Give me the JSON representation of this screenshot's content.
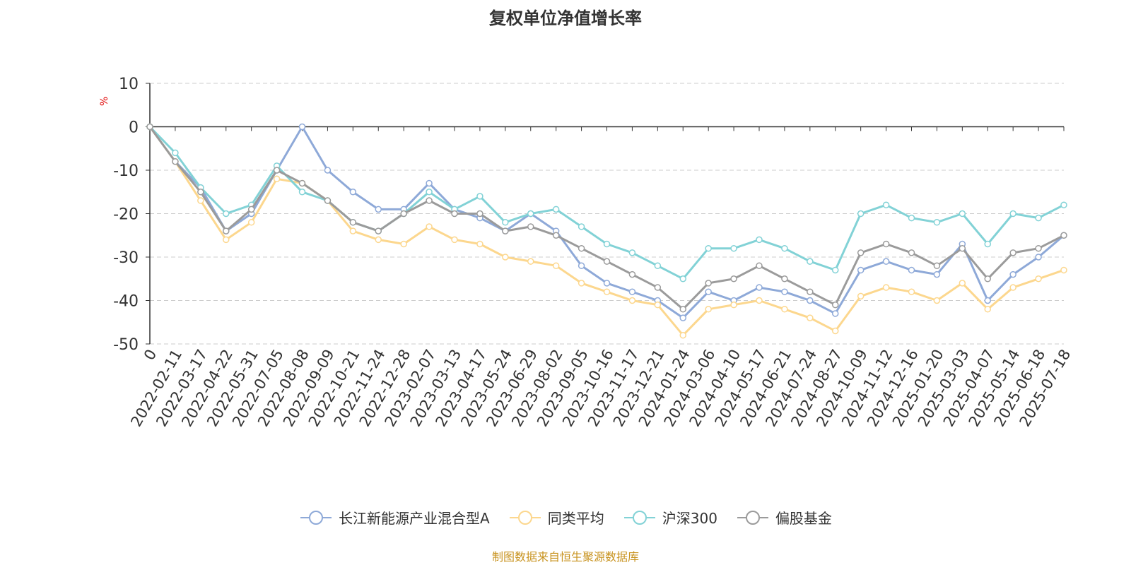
{
  "title": "复权单位净值增长率",
  "unit_label": "%",
  "source_note": "制图数据来自恒生聚源数据库",
  "colors": {
    "fund": "#8ea9d8",
    "category_avg": "#fcd78e",
    "hs300": "#82d2d6",
    "stock_fund": "#9b9b9b",
    "axis": "#333333",
    "grid": "#cccccc"
  },
  "chart_data": {
    "type": "line",
    "title": "复权单位净值增长率",
    "ylabel": "%",
    "ylim": [
      -50,
      10
    ],
    "yticks": [
      10,
      0,
      -10,
      -20,
      -30,
      -40,
      -50
    ],
    "x_ticks": [
      "0",
      "2022-02-11",
      "2022-03-17",
      "2022-04-22",
      "2022-05-31",
      "2022-07-05",
      "2022-08-08",
      "2022-09-09",
      "2022-10-21",
      "2022-11-24",
      "2022-12-28",
      "2023-02-07",
      "2023-03-13",
      "2023-04-17",
      "2023-05-24",
      "2023-06-29",
      "2023-08-02",
      "2023-09-05",
      "2023-10-16",
      "2023-11-17",
      "2023-12-21",
      "2024-01-24",
      "2024-03-06",
      "2024-04-10",
      "2024-05-17",
      "2024-06-21",
      "2024-07-24",
      "2024-08-27",
      "2024-10-09",
      "2024-11-12",
      "2024-12-16",
      "2025-01-20",
      "2025-03-03",
      "2025-04-07",
      "2025-05-14",
      "2025-06-18",
      "2025-07-18"
    ],
    "grid": true,
    "legend_position": "bottom",
    "series": [
      {
        "name": "长江新能源产业混合型A",
        "color": "#8ea9d8",
        "values": [
          0,
          -8,
          -14,
          -24,
          -20,
          -10,
          0,
          -10,
          -15,
          -19,
          -19,
          -13,
          -19,
          -21,
          -24,
          -20,
          -24,
          -32,
          -36,
          -38,
          -40,
          -44,
          -38,
          -40,
          -37,
          -38,
          -40,
          -43,
          -33,
          -31,
          -33,
          -34,
          -27,
          -40,
          -34,
          -30,
          -25
        ]
      },
      {
        "name": "同类平均",
        "color": "#fcd78e",
        "values": [
          0,
          -8,
          -17,
          -26,
          -22,
          -12,
          -13,
          -17,
          -24,
          -26,
          -27,
          -23,
          -26,
          -27,
          -30,
          -31,
          -32,
          -36,
          -38,
          -40,
          -41,
          -48,
          -42,
          -41,
          -40,
          -42,
          -44,
          -47,
          -39,
          -37,
          -38,
          -40,
          -36,
          -42,
          -37,
          -35,
          -33
        ]
      },
      {
        "name": "沪深300",
        "color": "#82d2d6",
        "values": [
          0,
          -6,
          -14,
          -20,
          -18,
          -9,
          -15,
          -17,
          -22,
          -24,
          -20,
          -15,
          -19,
          -16,
          -22,
          -20,
          -19,
          -23,
          -27,
          -29,
          -32,
          -35,
          -28,
          -28,
          -26,
          -28,
          -31,
          -33,
          -20,
          -18,
          -21,
          -22,
          -20,
          -27,
          -20,
          -21,
          -18
        ]
      },
      {
        "name": "偏股基金",
        "color": "#9b9b9b",
        "values": [
          0,
          -8,
          -15,
          -24,
          -19,
          -10,
          -13,
          -17,
          -22,
          -24,
          -20,
          -17,
          -20,
          -20,
          -24,
          -23,
          -25,
          -28,
          -31,
          -34,
          -37,
          -42,
          -36,
          -35,
          -32,
          -35,
          -38,
          -41,
          -29,
          -27,
          -29,
          -32,
          -28,
          -35,
          -29,
          -28,
          -25
        ]
      }
    ]
  }
}
